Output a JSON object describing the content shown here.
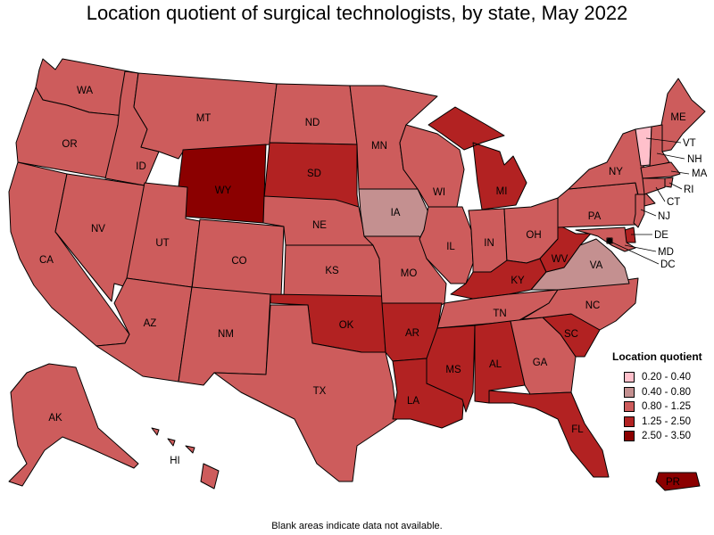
{
  "title": "Location quotient of surgical technologists, by state, May 2022",
  "footnote": "Blank areas indicate data not available.",
  "legend": {
    "title": "Location quotient",
    "items": [
      {
        "label": "0.20 - 0.40",
        "color": "#ffc0cb"
      },
      {
        "label": "0.40 - 0.80",
        "color": "#c49090"
      },
      {
        "label": "0.80 - 1.25",
        "color": "#cd5c5c"
      },
      {
        "label": "1.25 - 2.50",
        "color": "#b22222"
      },
      {
        "label": "2.50 - 3.50",
        "color": "#8b0000"
      }
    ]
  },
  "states": [
    {
      "abbr": "WA",
      "cat": 2
    },
    {
      "abbr": "OR",
      "cat": 2
    },
    {
      "abbr": "CA",
      "cat": 2
    },
    {
      "abbr": "ID",
      "cat": 2
    },
    {
      "abbr": "NV",
      "cat": 2
    },
    {
      "abbr": "MT",
      "cat": 2
    },
    {
      "abbr": "WY",
      "cat": 4
    },
    {
      "abbr": "UT",
      "cat": 2
    },
    {
      "abbr": "CO",
      "cat": 2
    },
    {
      "abbr": "AZ",
      "cat": 2
    },
    {
      "abbr": "NM",
      "cat": 2
    },
    {
      "abbr": "ND",
      "cat": 2
    },
    {
      "abbr": "SD",
      "cat": 3
    },
    {
      "abbr": "NE",
      "cat": 2
    },
    {
      "abbr": "KS",
      "cat": 2
    },
    {
      "abbr": "OK",
      "cat": 3
    },
    {
      "abbr": "TX",
      "cat": 2
    },
    {
      "abbr": "MN",
      "cat": 2
    },
    {
      "abbr": "IA",
      "cat": 1
    },
    {
      "abbr": "MO",
      "cat": 2
    },
    {
      "abbr": "AR",
      "cat": 3
    },
    {
      "abbr": "LA",
      "cat": 3
    },
    {
      "abbr": "WI",
      "cat": 2
    },
    {
      "abbr": "IL",
      "cat": 2
    },
    {
      "abbr": "MI",
      "cat": 3
    },
    {
      "abbr": "IN",
      "cat": 2
    },
    {
      "abbr": "OH",
      "cat": 2
    },
    {
      "abbr": "KY",
      "cat": 3
    },
    {
      "abbr": "TN",
      "cat": 2
    },
    {
      "abbr": "MS",
      "cat": 3
    },
    {
      "abbr": "AL",
      "cat": 3
    },
    {
      "abbr": "GA",
      "cat": 2
    },
    {
      "abbr": "FL",
      "cat": 3
    },
    {
      "abbr": "SC",
      "cat": 3
    },
    {
      "abbr": "NC",
      "cat": 2
    },
    {
      "abbr": "VA",
      "cat": 1
    },
    {
      "abbr": "WV",
      "cat": 3
    },
    {
      "abbr": "PA",
      "cat": 2
    },
    {
      "abbr": "NY",
      "cat": 2
    },
    {
      "abbr": "ME",
      "cat": 2
    },
    {
      "abbr": "VT",
      "cat": 0
    },
    {
      "abbr": "NH",
      "cat": 2
    },
    {
      "abbr": "MA",
      "cat": 2
    },
    {
      "abbr": "RI",
      "cat": 2
    },
    {
      "abbr": "CT",
      "cat": 2
    },
    {
      "abbr": "NJ",
      "cat": 2
    },
    {
      "abbr": "DE",
      "cat": 3
    },
    {
      "abbr": "MD",
      "cat": 2
    },
    {
      "abbr": "DC",
      "cat": 2
    },
    {
      "abbr": "AK",
      "cat": 2
    },
    {
      "abbr": "HI",
      "cat": 2
    },
    {
      "abbr": "PR",
      "cat": 4
    }
  ]
}
